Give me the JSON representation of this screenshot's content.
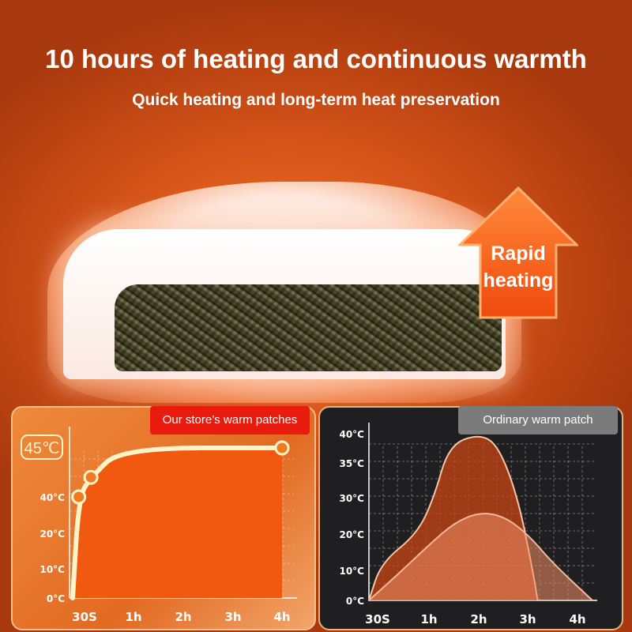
{
  "header": {
    "title": "10 hours of heating and continuous warmth",
    "subtitle": "Quick heating and long-term heat preservation"
  },
  "badge": {
    "label_line1": "Rapid",
    "label_line2": "heating",
    "icon": "up-arrow-icon",
    "color": "#f25a12"
  },
  "chart_data": [
    {
      "type": "area",
      "legend": "Our store’s warm patches",
      "legend_color": "#e81b0d",
      "x_ticks": [
        "30S",
        "1h",
        "2h",
        "3h",
        "4h"
      ],
      "y_ticks": [
        "0°C",
        "10°C",
        "20°C",
        "40°C"
      ],
      "highlight_label": "45℃",
      "series": [
        {
          "x": [
            0,
            0.1,
            0.3,
            0.8,
            4
          ],
          "y": [
            0,
            40,
            42,
            45,
            45
          ],
          "color": "#fff3c8"
        }
      ]
    },
    {
      "type": "area",
      "legend": "Ordinary warm patch",
      "legend_color": "#7b7b7b",
      "x_ticks": [
        "30S",
        "1h",
        "2h",
        "3h",
        "4h"
      ],
      "y_ticks": [
        "0°C",
        "10°C",
        "20°C",
        "30°C",
        "35°C",
        "40°C"
      ],
      "series": [
        {
          "x": [
            0,
            0.2,
            0.8,
            1.1,
            1.4,
            2,
            2.4,
            2.8,
            3.1,
            3.2
          ],
          "y": [
            0,
            12,
            20,
            30,
            38,
            40,
            38,
            30,
            10,
            0
          ],
          "color": "#f6c5a8"
        },
        {
          "x": [
            0,
            0.5,
            1,
            1.5,
            2,
            2.5,
            3,
            3.5,
            4.3
          ],
          "y": [
            0,
            9,
            17,
            23,
            26,
            25,
            20,
            12,
            0
          ],
          "color": "#f6b89a"
        }
      ]
    }
  ]
}
